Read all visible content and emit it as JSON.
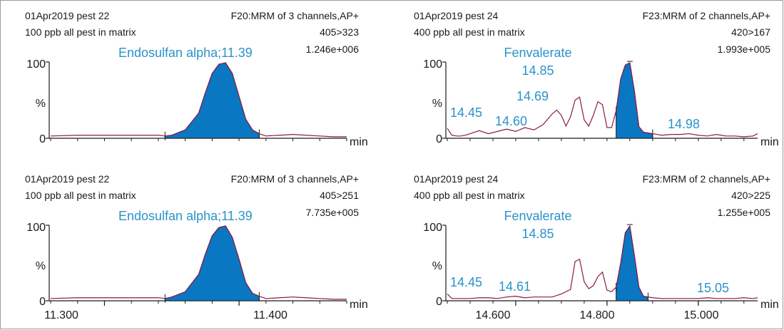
{
  "colors": {
    "trace": "#8b1a4a",
    "fill": "#0a77c2",
    "annotation": "#2a93c9",
    "axis": "#1a1a1a"
  },
  "chart_data": [
    {
      "type": "line",
      "sample": "01Apr2019 pest 22",
      "matrix": "100 ppb all pest in matrix",
      "function": "F20:MRM of 3 channels,AP+",
      "transition": "405>323",
      "intensity": "1.246e+006",
      "peak_label": "Endosulfan alpha;11.39",
      "ylabels": [
        "100",
        "%",
        "0"
      ],
      "xlabel": "min",
      "xlim": [
        11.26,
        11.48
      ],
      "ylim": [
        0,
        100
      ],
      "x": [
        11.26,
        11.28,
        11.3,
        11.32,
        11.34,
        11.345,
        11.35,
        11.36,
        11.37,
        11.375,
        11.38,
        11.385,
        11.39,
        11.395,
        11.4,
        11.405,
        11.41,
        11.415,
        11.42,
        11.43,
        11.44,
        11.45,
        11.46,
        11.47,
        11.48
      ],
      "y": [
        3,
        4,
        4,
        4,
        4,
        3,
        4,
        11,
        33,
        60,
        85,
        97,
        99,
        85,
        55,
        25,
        11,
        6,
        3,
        4,
        5,
        4,
        3,
        2,
        2
      ],
      "shade": [
        11.345,
        11.415
      ]
    },
    {
      "type": "line",
      "sample": "01Apr2019 pest 24",
      "matrix": "400 ppb all pest in matrix",
      "function": "F23:MRM of 2 channels,AP+",
      "transition": "420>167",
      "intensity": "1.993e+005",
      "peak_label": "Fenvalerate",
      "peak_rt": "14.85",
      "annotations": [
        "14.45",
        "14.60",
        "14.69",
        "14.98"
      ],
      "ylabels": [
        "100",
        "%",
        "0"
      ],
      "xlabel": "min",
      "xlim": [
        14.45,
        15.13
      ],
      "ylim": [
        0,
        100
      ],
      "x": [
        14.45,
        14.46,
        14.47,
        14.48,
        14.49,
        14.5,
        14.52,
        14.54,
        14.56,
        14.58,
        14.6,
        14.62,
        14.64,
        14.66,
        14.68,
        14.69,
        14.7,
        14.71,
        14.72,
        14.73,
        14.74,
        14.75,
        14.76,
        14.77,
        14.78,
        14.79,
        14.8,
        14.81,
        14.82,
        14.83,
        14.84,
        14.85,
        14.86,
        14.87,
        14.88,
        14.9,
        14.92,
        14.94,
        14.96,
        14.98,
        15.0,
        15.02,
        15.04,
        15.06,
        15.08,
        15.1,
        15.12,
        15.13
      ],
      "y": [
        13,
        4,
        3,
        3,
        4,
        6,
        10,
        6,
        9,
        12,
        9,
        14,
        11,
        18,
        32,
        37,
        30,
        16,
        28,
        50,
        54,
        24,
        16,
        30,
        48,
        44,
        14,
        14,
        36,
        78,
        96,
        99,
        62,
        15,
        8,
        6,
        4,
        5,
        5,
        6,
        4,
        3,
        5,
        3,
        3,
        2,
        3,
        6
      ],
      "shade": [
        14.82,
        14.9
      ]
    },
    {
      "type": "line",
      "sample": "01Apr2019 pest 22",
      "matrix": "100 ppb all pest in matrix",
      "function": "F20:MRM of 3 channels,AP+",
      "transition": "405>251",
      "intensity": "7.735e+005",
      "peak_label": "Endosulfan alpha;11.39",
      "ylabels": [
        "100",
        "%",
        "0"
      ],
      "xlabel": "min",
      "xticklabels": [
        "11.300",
        "11.400"
      ],
      "xticks": [
        11.3,
        11.4
      ],
      "xlim": [
        11.26,
        11.48
      ],
      "ylim": [
        0,
        100
      ],
      "x": [
        11.26,
        11.28,
        11.3,
        11.32,
        11.34,
        11.345,
        11.35,
        11.36,
        11.37,
        11.375,
        11.38,
        11.385,
        11.39,
        11.395,
        11.4,
        11.405,
        11.41,
        11.415,
        11.42,
        11.43,
        11.44,
        11.45,
        11.46,
        11.47,
        11.48
      ],
      "y": [
        3,
        4,
        4,
        4,
        4,
        3,
        5,
        12,
        35,
        62,
        86,
        97,
        99,
        84,
        55,
        24,
        10,
        6,
        3,
        4,
        5,
        4,
        3,
        2,
        2
      ],
      "shade": [
        11.345,
        11.415
      ]
    },
    {
      "type": "line",
      "sample": "01Apr2019 pest 24",
      "matrix": "400 ppb all pest in matrix",
      "function": "F23:MRM of 2 channels,AP+",
      "transition": "420>225",
      "intensity": "1.255e+005",
      "peak_label": "Fenvalerate",
      "peak_rt": "14.85",
      "annotations": [
        "14.45",
        "14.61",
        "15.05"
      ],
      "ylabels": [
        "100",
        "%",
        "0"
      ],
      "xlabel": "min",
      "xticklabels": [
        "14.600",
        "14.800",
        "15.000"
      ],
      "xticks": [
        14.6,
        14.8,
        15.0
      ],
      "xlim": [
        14.45,
        15.13
      ],
      "ylim": [
        0,
        100
      ],
      "x": [
        14.45,
        14.46,
        14.47,
        14.48,
        14.5,
        14.52,
        14.54,
        14.56,
        14.58,
        14.6,
        14.62,
        14.64,
        14.66,
        14.68,
        14.7,
        14.72,
        14.73,
        14.74,
        14.75,
        14.76,
        14.77,
        14.78,
        14.79,
        14.8,
        14.81,
        14.82,
        14.83,
        14.84,
        14.85,
        14.86,
        14.87,
        14.88,
        14.9,
        14.92,
        14.94,
        14.96,
        14.98,
        15.0,
        15.02,
        15.04,
        15.06,
        15.08,
        15.1,
        15.12,
        15.13
      ],
      "y": [
        9,
        3,
        3,
        3,
        3,
        4,
        4,
        3,
        5,
        6,
        4,
        5,
        5,
        5,
        9,
        15,
        52,
        55,
        25,
        16,
        20,
        32,
        38,
        14,
        12,
        18,
        50,
        90,
        99,
        60,
        18,
        6,
        4,
        3,
        3,
        3,
        3,
        3,
        4,
        3,
        3,
        3,
        4,
        3,
        4
      ],
      "shade": [
        14.82,
        14.89
      ]
    }
  ]
}
